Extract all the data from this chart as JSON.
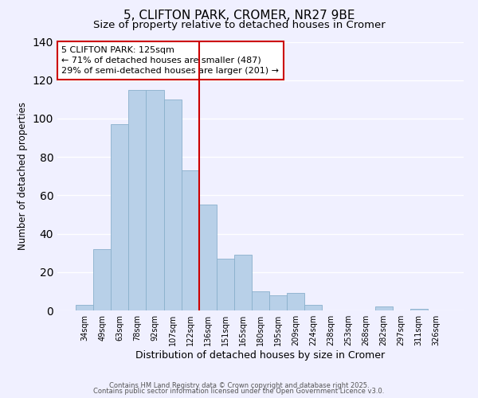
{
  "title": "5, CLIFTON PARK, CROMER, NR27 9BE",
  "subtitle": "Size of property relative to detached houses in Cromer",
  "xlabel": "Distribution of detached houses by size in Cromer",
  "ylabel": "Number of detached properties",
  "categories": [
    "34sqm",
    "49sqm",
    "63sqm",
    "78sqm",
    "92sqm",
    "107sqm",
    "122sqm",
    "136sqm",
    "151sqm",
    "165sqm",
    "180sqm",
    "195sqm",
    "209sqm",
    "224sqm",
    "238sqm",
    "253sqm",
    "268sqm",
    "282sqm",
    "297sqm",
    "311sqm",
    "326sqm"
  ],
  "values": [
    3,
    32,
    97,
    115,
    115,
    110,
    73,
    55,
    27,
    29,
    10,
    8,
    9,
    3,
    0,
    0,
    0,
    2,
    0,
    1,
    0
  ],
  "bar_color": "#b8d0e8",
  "bar_edge_color": "#8ab0cc",
  "vline_color": "#cc0000",
  "ylim": [
    0,
    140
  ],
  "annotation_line1": "5 CLIFTON PARK: 125sqm",
  "annotation_line2": "← 71% of detached houses are smaller (487)",
  "annotation_line3": "29% of semi-detached houses are larger (201) →",
  "footer1": "Contains HM Land Registry data © Crown copyright and database right 2025.",
  "footer2": "Contains public sector information licensed under the Open Government Licence v3.0.",
  "background_color": "#f0f0ff",
  "grid_color": "#ffffff",
  "title_fontsize": 11,
  "subtitle_fontsize": 9.5,
  "tick_fontsize": 7,
  "ylabel_fontsize": 8.5,
  "xlabel_fontsize": 9,
  "annotation_fontsize": 8,
  "footer_fontsize": 6
}
